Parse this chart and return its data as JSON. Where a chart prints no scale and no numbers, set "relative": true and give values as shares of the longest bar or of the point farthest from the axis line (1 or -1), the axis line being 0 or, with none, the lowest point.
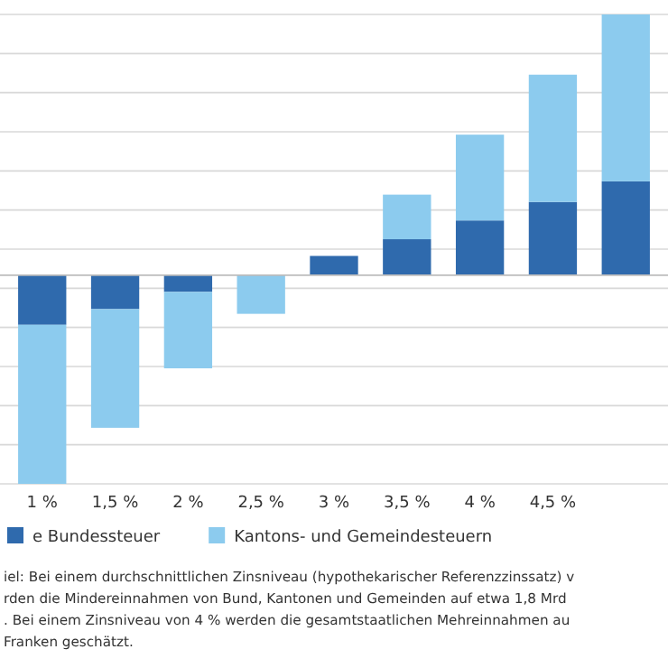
{
  "chart_data": {
    "type": "bar",
    "stacked": true,
    "relative": true,
    "grid": "y",
    "legend": "bottom",
    "categories": [
      "1 %",
      "1,5 %",
      "2 %",
      "2,5 %",
      "3 %",
      "3,5 %",
      "4 %",
      "4,5 %",
      null
    ],
    "series": [
      {
        "name": "e Bundessteuer",
        "color": "#2f6aad",
        "values": [
          -0.19,
          -0.13,
          -0.064,
          0,
          0.074,
          0.138,
          0.21,
          0.281,
          0.36
        ]
      },
      {
        "name": "Kantons- und Gemeindesteuern",
        "color": "#8ccbee",
        "values": [
          -0.61,
          -0.455,
          -0.293,
          -0.148,
          0,
          0.171,
          0.329,
          0.488,
          0.64
        ]
      }
    ],
    "annotations": [
      "iel: Bei einem durchschnittlichen Zinsniveau (hypothekarischer Referenzzinssatz) v",
      "rden die Mindereinnahmen von Bund, Kantonen und Gemeinden auf etwa 1,8 Mrd",
      ". Bei einem Zinsniveau von 4 % werden die gesamtstaatlichen Mehreinnahmen au",
      "Franken geschätzt."
    ]
  }
}
